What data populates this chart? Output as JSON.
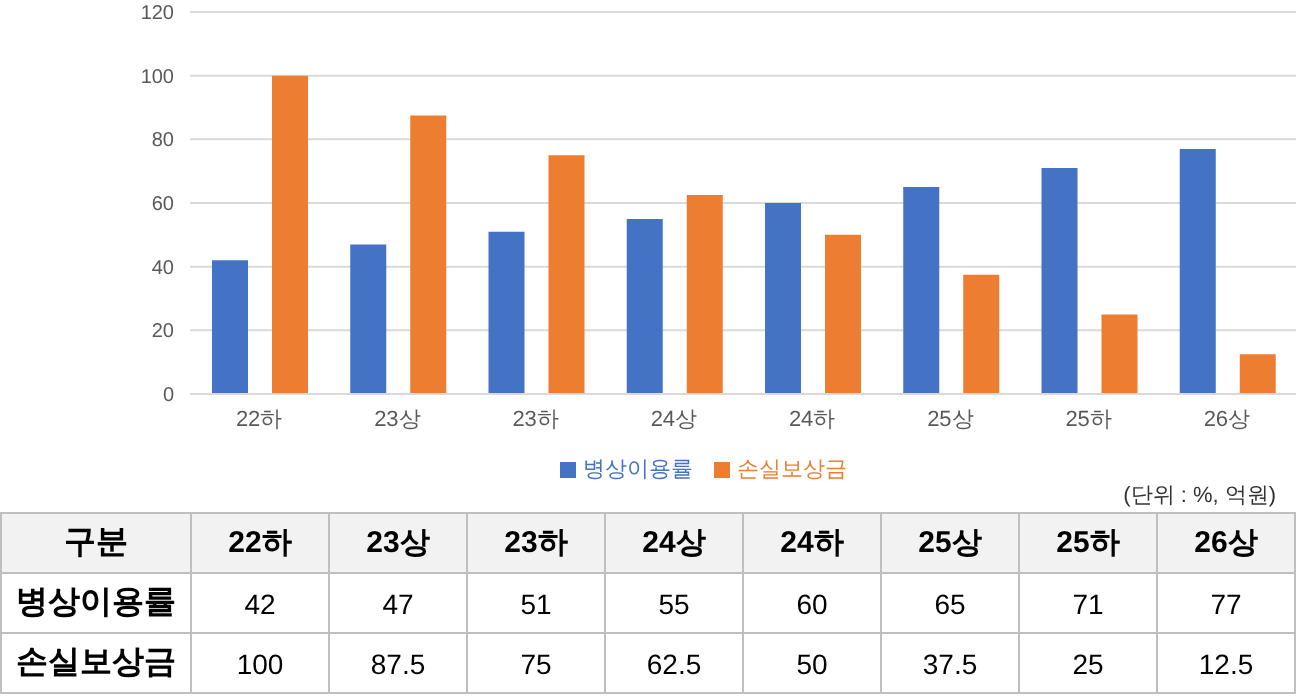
{
  "chart_data": {
    "type": "bar",
    "categories": [
      "22하",
      "23상",
      "23하",
      "24상",
      "24하",
      "25상",
      "25하",
      "26상"
    ],
    "series": [
      {
        "name": "병상이용률",
        "color": "#4472c4",
        "values": [
          42,
          47,
          51,
          55,
          60,
          65,
          71,
          77
        ]
      },
      {
        "name": "손실보상금",
        "color": "#ed7d31",
        "values": [
          100,
          87.5,
          75,
          62.5,
          50,
          37.5,
          25,
          12.5
        ]
      }
    ],
    "ylim": [
      0,
      120
    ],
    "yticks": [
      0,
      20,
      40,
      60,
      80,
      100,
      120
    ],
    "grid": "y",
    "legend": "bottom",
    "data_labels": true,
    "annotations": [
      "(단위 : %, 억원)",
      "구분"
    ]
  }
}
